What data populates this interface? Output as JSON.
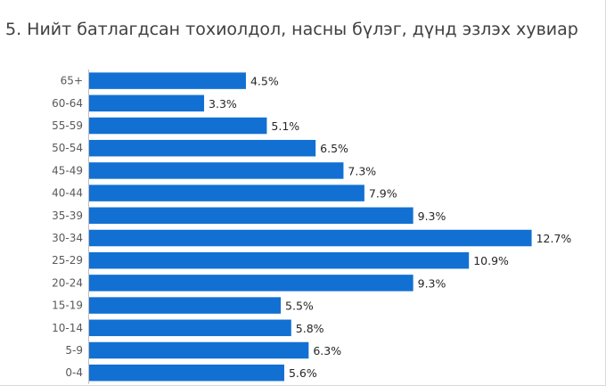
{
  "chart_data": {
    "type": "bar",
    "orientation": "horizontal",
    "title": "5. Нийт батлагдсан тохиолдол, насны бүлэг, дүнд эзлэх хувиар",
    "categories": [
      "65+",
      "60-64",
      "55-59",
      "50-54",
      "45-49",
      "40-44",
      "35-39",
      "30-34",
      "25-29",
      "20-24",
      "15-19",
      "10-14",
      "5-9",
      "0-4"
    ],
    "values": [
      4.5,
      3.3,
      5.1,
      6.5,
      7.3,
      7.9,
      9.3,
      12.7,
      10.9,
      9.3,
      5.5,
      5.8,
      6.3,
      5.6
    ],
    "data_labels": [
      "4.5%",
      "3.3%",
      "5.1%",
      "6.5%",
      "7.3%",
      "7.9%",
      "9.3%",
      "12.7%",
      "10.9%",
      "9.3%",
      "5.5%",
      "5.8%",
      "6.3%",
      "5.6%"
    ],
    "unit": "%",
    "bar_color": "#1270d3",
    "xlabel": "",
    "ylabel": "",
    "grid": false,
    "legend": "none"
  }
}
